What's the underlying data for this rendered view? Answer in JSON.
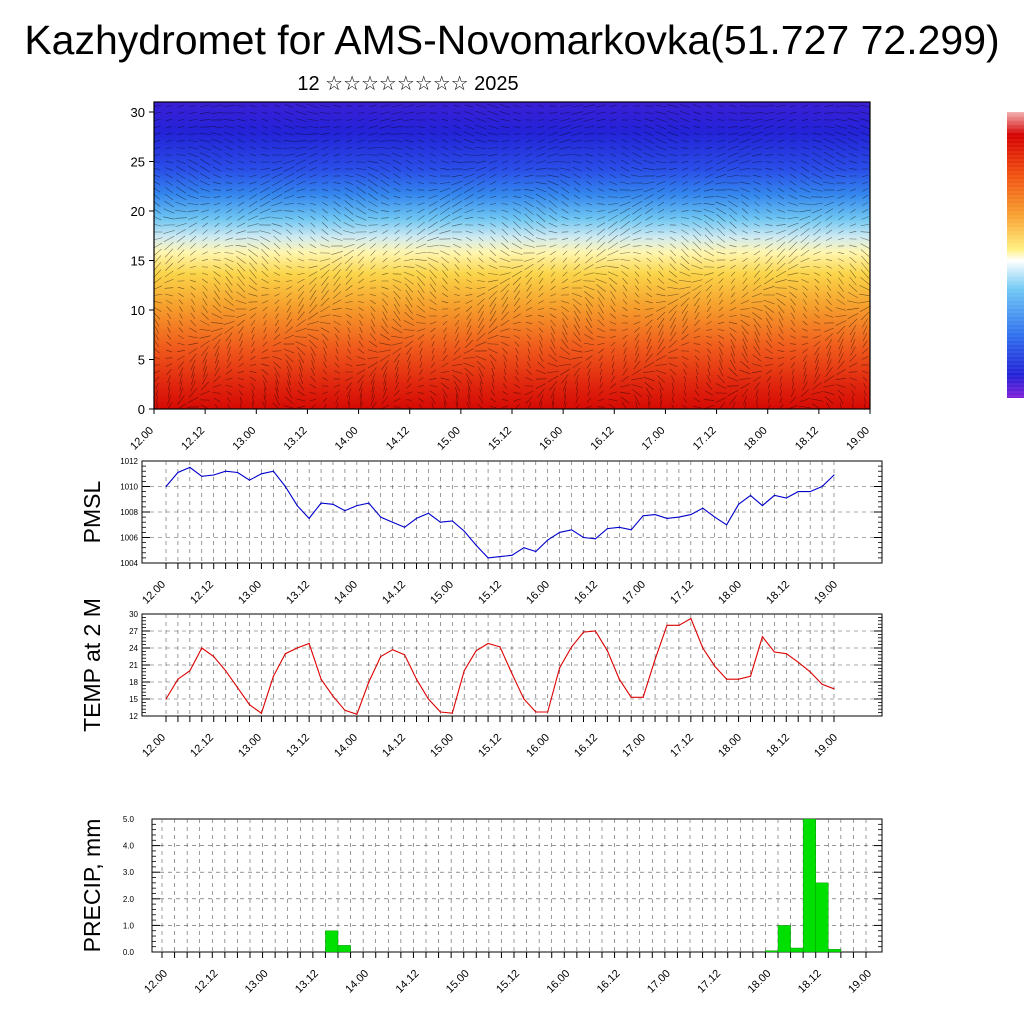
{
  "header": {
    "title": "Kazhydromet for AMS-Novomarkovka(51.727 72.299)",
    "subtitle": "12 ☆☆☆☆☆☆☆☆ 2025"
  },
  "colors": {
    "pmsl_line": "#0000cc",
    "temp_line": "#dd0000",
    "precip_bar": "#00e000",
    "precip_bar_edge": "#008800"
  },
  "chart_data": [
    {
      "type": "heatmap",
      "name": "cross-section",
      "ylim": [
        0,
        30
      ],
      "yticks": [
        "0",
        "5",
        "10",
        "15",
        "20",
        "25",
        "30"
      ],
      "xticks": [
        "12.00",
        "12.12",
        "13.00",
        "13.12",
        "14.00",
        "14.12",
        "15.00",
        "15.12",
        "16.00",
        "16.12",
        "17.00",
        "17.12",
        "18.00",
        "18.12",
        "19.00"
      ],
      "overlay": "wind vectors",
      "colorbar": [
        "#7a1ed6",
        "#2a22d8",
        "#2e58ee",
        "#48a8f4",
        "#a8dcf0",
        "#fff4a0",
        "#fcd23e",
        "#f79a2a",
        "#ef4a1a",
        "#c80000",
        "#f0a0a0"
      ]
    },
    {
      "type": "line",
      "name": "pmsl",
      "ylabel": "PMSL",
      "ylim": [
        1004,
        1012
      ],
      "yticks": [
        "1004",
        "1006",
        "1008",
        "1010",
        "1012"
      ],
      "xticks": [
        "12.00",
        "12.12",
        "13.00",
        "13.12",
        "14.00",
        "14.12",
        "15.00",
        "15.12",
        "16.00",
        "16.12",
        "17.00",
        "17.12",
        "18.00",
        "18.12",
        "19.00"
      ],
      "x_step_hours": 3,
      "values": [
        1010.0,
        1011.1,
        1011.5,
        1010.8,
        1010.9,
        1011.2,
        1011.1,
        1010.5,
        1011.0,
        1011.2,
        1010.0,
        1008.5,
        1007.5,
        1008.7,
        1008.6,
        1008.1,
        1008.5,
        1008.7,
        1007.6,
        1007.2,
        1006.8,
        1007.5,
        1007.9,
        1007.2,
        1007.3,
        1006.5,
        1005.4,
        1004.4,
        1004.5,
        1004.6,
        1005.2,
        1004.9,
        1005.8,
        1006.4,
        1006.6,
        1006.0,
        1005.9,
        1006.7,
        1006.8,
        1006.6,
        1007.7,
        1007.8,
        1007.5,
        1007.6,
        1007.8,
        1008.3,
        1007.6,
        1007.0,
        1008.6,
        1009.3,
        1008.5,
        1009.3,
        1009.1,
        1009.6,
        1009.6,
        1010.0,
        1010.9
      ]
    },
    {
      "type": "line",
      "name": "temp",
      "ylabel": "TEMP at 2 M",
      "ylim": [
        12,
        30
      ],
      "yticks": [
        "12",
        "15",
        "18",
        "21",
        "24",
        "27",
        "30"
      ],
      "xticks": [
        "12.00",
        "12.12",
        "13.00",
        "13.12",
        "14.00",
        "14.12",
        "15.00",
        "15.12",
        "16.00",
        "16.12",
        "17.00",
        "17.12",
        "18.00",
        "18.12",
        "19.00"
      ],
      "x_step_hours": 3,
      "values": [
        15.0,
        18.5,
        20.0,
        24.0,
        22.5,
        20.0,
        17.0,
        14.0,
        12.5,
        19.0,
        23.0,
        24.0,
        24.8,
        18.5,
        15.5,
        13.0,
        12.3,
        18.0,
        22.5,
        23.7,
        22.8,
        18.5,
        15.0,
        12.7,
        12.5,
        20.0,
        23.5,
        24.8,
        24.2,
        19.5,
        15.0,
        12.7,
        12.7,
        20.5,
        24.2,
        26.8,
        27.0,
        23.5,
        18.5,
        15.3,
        15.3,
        22.0,
        28.0,
        28.0,
        29.2,
        24.0,
        20.8,
        18.5,
        18.5,
        19.0,
        26.0,
        23.3,
        23.0,
        21.5,
        19.8,
        17.6,
        16.8
      ]
    },
    {
      "type": "bar",
      "name": "precip",
      "ylabel": "PRECIP, mm",
      "ylim": [
        0,
        5
      ],
      "yticks": [
        "0.0",
        "1.0",
        "2.0",
        "3.0",
        "4.0",
        "5.0"
      ],
      "xticks": [
        "12.00",
        "12.12",
        "13.00",
        "13.12",
        "14.00",
        "14.12",
        "15.00",
        "15.12",
        "16.00",
        "16.12",
        "17.00",
        "17.12",
        "18.00",
        "18.12",
        "19.00"
      ],
      "x_step_hours": 3,
      "values": [
        0,
        0,
        0,
        0,
        0,
        0,
        0,
        0,
        0,
        0,
        0,
        0,
        0,
        0.8,
        0.25,
        0,
        0,
        0,
        0,
        0,
        0,
        0,
        0,
        0,
        0,
        0,
        0,
        0,
        0,
        0,
        0,
        0,
        0,
        0,
        0,
        0,
        0,
        0,
        0,
        0,
        0,
        0,
        0,
        0,
        0,
        0,
        0,
        0,
        0.05,
        1.0,
        0.15,
        5.0,
        2.6,
        0.1,
        0,
        0
      ]
    }
  ]
}
